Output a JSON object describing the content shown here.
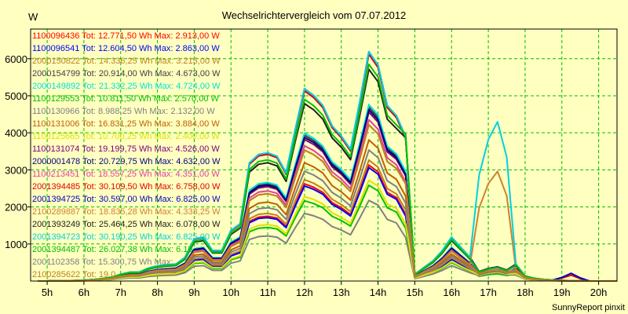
{
  "footer": "SunnyReport pinxit",
  "colors": {
    "background": "#ffffc0",
    "grid": "#00c000",
    "axis": "#000000"
  },
  "chart_data": {
    "type": "line",
    "title": "Wechselrichtervergleich vom 07.07.2012",
    "ylabel": "W",
    "xlabel": "",
    "grid": true,
    "legend_position": "top-left",
    "xlim": [
      4.55,
      20.5
    ],
    "ylim": [
      0,
      6800
    ],
    "x_ticks": [
      5,
      6,
      7,
      8,
      9,
      10,
      11,
      12,
      13,
      14,
      15,
      16,
      17,
      18,
      19,
      20
    ],
    "x_tick_labels": [
      "5h",
      "6h",
      "7h",
      "8h",
      "9h",
      "10h",
      "11h",
      "12h",
      "13h",
      "14h",
      "15h",
      "16h",
      "17h",
      "18h",
      "19h",
      "20h"
    ],
    "y_ticks": [
      1000,
      2000,
      3000,
      4000,
      5000,
      6000
    ],
    "y_tick_labels": [
      "1000",
      "2000",
      "3000",
      "4000",
      "5000",
      "6000"
    ],
    "x": [
      4.75,
      5.0,
      5.25,
      5.5,
      5.75,
      6.0,
      6.25,
      6.5,
      6.75,
      7.0,
      7.25,
      7.5,
      7.75,
      8.0,
      8.25,
      8.5,
      8.75,
      9.0,
      9.25,
      9.5,
      9.75,
      10.0,
      10.25,
      10.5,
      10.75,
      11.0,
      11.25,
      11.5,
      11.75,
      12.0,
      12.25,
      12.5,
      12.75,
      13.0,
      13.25,
      13.5,
      13.75,
      14.0,
      14.25,
      14.5,
      14.75,
      15.0,
      15.25,
      15.5,
      15.75,
      16.0,
      16.25,
      16.5,
      16.75,
      17.0,
      17.25,
      17.5,
      17.75,
      18.0,
      18.25,
      18.5,
      18.75,
      19.0,
      19.25,
      19.5,
      19.75,
      20.0,
      20.25,
      20.5
    ],
    "series": [
      {
        "name": "1100096436 Tot: 12.771,50 Wh Max: 2.913,00 W",
        "color": "#ff0000",
        "shape": 0.46,
        "smax": 0.83,
        "pm": [
          0.4,
          0.08,
          0.03
        ],
        "eve": 0
      },
      {
        "name": "1100096541 Tot: 12.604,50 Wh Max: 2.863,00 W",
        "color": "#0000ff",
        "shape": 0.45,
        "smax": 0.83,
        "pm": [
          0.4,
          0.08,
          0.03
        ],
        "eve": 0
      },
      {
        "name": "2000150822 Tot: 14.336,25 Wh Max: 3.215,00 W",
        "color": "#c08020",
        "shape": 0.48,
        "smax": 0.85,
        "pm": [
          0.41,
          0.09,
          0.03
        ],
        "eve": 0
      },
      {
        "name": "2000154799 Tot: 20.914,00 Wh Max: 4.673,00 W",
        "color": "#404040",
        "shape": 0.69,
        "smax": 0.9,
        "pm": [
          0.4,
          0.08,
          0.02
        ],
        "eve": 0
      },
      {
        "name": "2000149892 Tot: 21.332,25 Wh Max: 4.724,00 W",
        "color": "#00e0e0",
        "shape": 0.7,
        "smax": 0.9,
        "pm": [
          0.42,
          0.09,
          0.02
        ],
        "eve": 0
      },
      {
        "name": "1100129553 Tot: 10.811,50 Wh Max: 2.570,00 W",
        "color": "#00c000",
        "shape": 0.38,
        "smax": 0.8,
        "pm": [
          0.38,
          0.08,
          0.02
        ],
        "eve": 0
      },
      {
        "name": "1100130966 Tot: 8.988,25 Wh Max: 2.132,00 W",
        "color": "#808080",
        "shape": 0.32,
        "smax": 0.78,
        "pm": [
          0.4,
          0.08,
          0.03
        ],
        "eve": 0
      },
      {
        "name": "1100131006 Tot: 16.831,25 Wh Max: 3.884,00 W",
        "color": "#c06000",
        "shape": 0.56,
        "smax": 0.87,
        "pm": [
          0.4,
          0.08,
          0.03
        ],
        "eve": 0
      },
      {
        "name": "1100125665 Tot: 10.700,25 Wh Max: 2.400,00 W",
        "color": "#e0e000",
        "shape": 0.4,
        "smax": 0.82,
        "pm": [
          0.4,
          0.08,
          0.03
        ],
        "eve": 0
      },
      {
        "name": "1100131074 Tot: 19.199,75 Wh Max: 4.526,00 W",
        "color": "#800080",
        "shape": 0.67,
        "smax": 0.9,
        "pm": [
          0.41,
          0.09,
          0.02
        ],
        "eve": 0
      },
      {
        "name": "2000001478 Tot: 20.729,75 Wh Max: 4.632,00 W",
        "color": "#000080",
        "shape": 0.68,
        "smax": 0.9,
        "pm": [
          0.42,
          0.09,
          0.02
        ],
        "eve": 0
      },
      {
        "name": "1100213451 Tot: 18.557,25 Wh Max: 4.351,00 W",
        "color": "#e040a0",
        "shape": 0.64,
        "smax": 0.89,
        "pm": [
          0.4,
          0.08,
          0.03
        ],
        "eve": 0
      },
      {
        "name": "2001394485 Tot: 30.109,50 Wh Max: 6.758,00 W",
        "color": "#e00000",
        "shape": 0.9,
        "smax": 0.91,
        "pm": [
          0.44,
          0.09,
          0.03
        ],
        "eve": 150
      },
      {
        "name": "2001394725 Tot: 30.597,00 Wh Max: 6.825,00 W",
        "color": "#0000c0",
        "shape": 0.91,
        "smax": 0.91,
        "pm": [
          0.45,
          0.09,
          0.03
        ],
        "eve": 200
      },
      {
        "name": "2100289887 Tot: 18.835,28 Wh Max: 4.333,25 W",
        "color": "#d08030",
        "shape": 0.62,
        "smax": 0.91,
        "pm": [
          0.48,
          0.1,
          0.62
        ],
        "eve": 0
      },
      {
        "name": "2001393249 Tot: 25.464,25 Wh Max: 6.078,00 W",
        "color": "#202020",
        "shape": 0.84,
        "smax": 0.98,
        "pm": [
          0.55,
          0.1,
          0.03
        ],
        "eve": 0
      },
      {
        "name": "2001394723 Tot: 30.190,25 Wh Max: 6.825,00 W",
        "color": "#00d0e0",
        "shape": 0.91,
        "smax": 0.91,
        "pm": [
          0.45,
          0.09,
          0.9
        ],
        "eve": 0
      },
      {
        "name": "2001394487 Tot: 26.027,38 Wh Max: 6.15",
        "color": "#00c000",
        "shape": 0.86,
        "smax": 0.98,
        "pm": [
          0.55,
          0.1,
          0.03
        ],
        "eve": 0
      },
      {
        "name": "2001102358 Tot: 15.300,75 Wh Max:",
        "color": "#808080",
        "shape": 0.52,
        "smax": 0.86,
        "pm": [
          0.4,
          0.08,
          0.03
        ],
        "eve": 0
      },
      {
        "name": "2100285622 Tot: 19.0",
        "color": "#c08020",
        "shape": 0.62,
        "smax": 0.9,
        "pm": [
          0.48,
          0.1,
          0.03
        ],
        "eve": 0
      }
    ],
    "shape_profile": [
      0,
      0,
      5,
      10,
      15,
      25,
      45,
      70,
      110,
      200,
      260,
      260,
      380,
      450,
      480,
      500,
      700,
      1250,
      1300,
      900,
      900,
      1500,
      1700,
      3500,
      3750,
      3800,
      3700,
      3200,
      4500,
      5700,
      5500,
      5200,
      4600,
      4300,
      3900,
      5300,
      6800,
      6400,
      5200,
      4900,
      4700,
      200,
      400,
      600,
      900,
      1300,
      1000,
      700,
      600,
      800,
      900,
      700,
      500,
      150,
      80,
      50,
      30,
      20,
      10,
      5,
      0,
      0,
      0,
      0
    ],
    "morning_profile": [
      0,
      0,
      1,
      2,
      3,
      5,
      9,
      14,
      22,
      40,
      52,
      52,
      76,
      90,
      96,
      100,
      140,
      250,
      260,
      180,
      180,
      300,
      340,
      700,
      750,
      760,
      740,
      640,
      900,
      1140,
      1100,
      1040,
      920,
      860,
      780,
      1060,
      1360,
      1280,
      1040,
      980,
      940,
      40,
      80,
      120,
      180,
      260,
      200,
      140,
      120,
      160,
      180,
      140,
      100,
      30,
      16,
      10,
      6,
      4,
      2,
      1,
      0,
      0,
      0,
      0
    ]
  }
}
